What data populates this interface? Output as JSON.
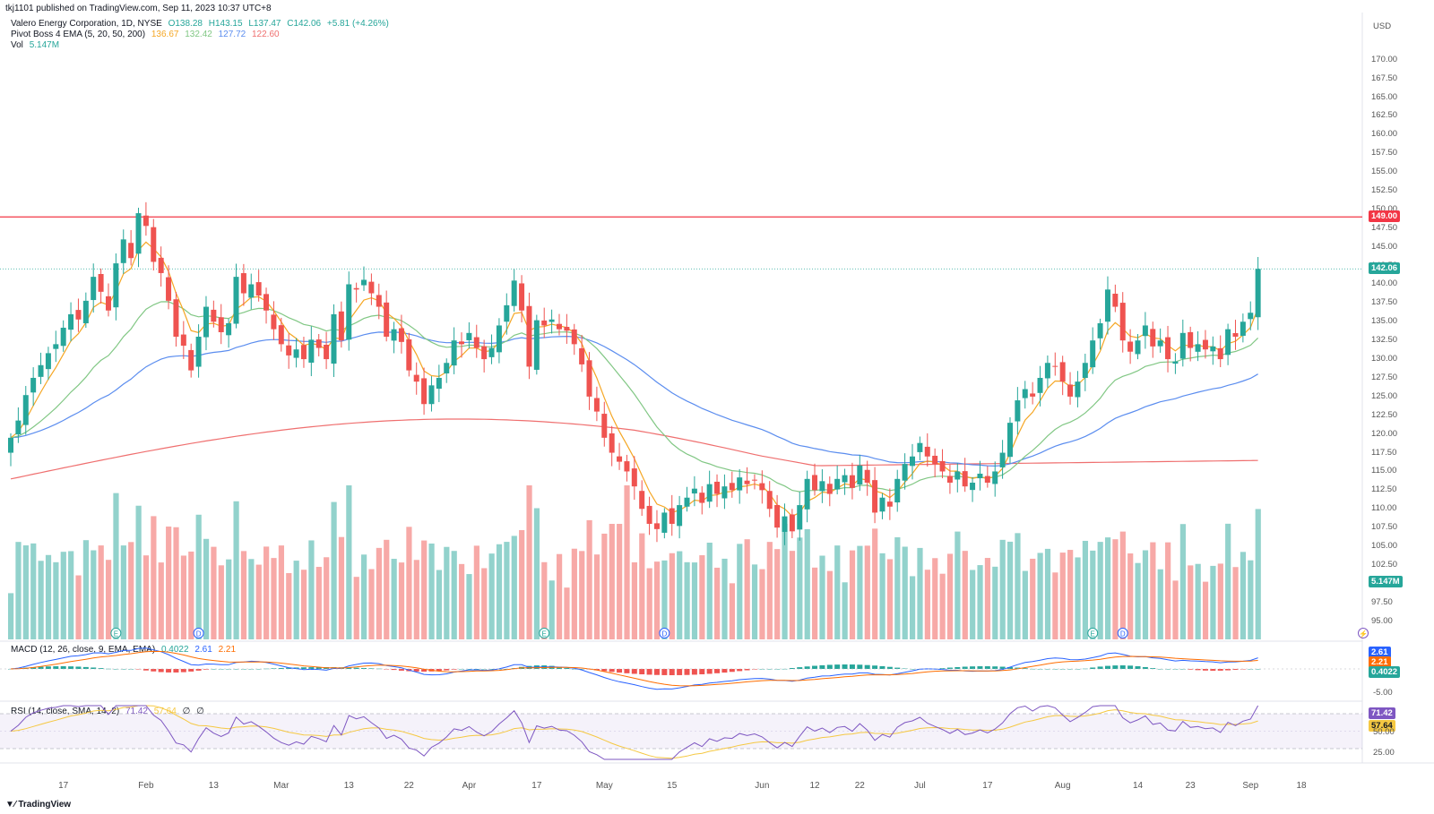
{
  "published": "tkj1101 published on TradingView.com, Sep 11, 2023 10:37 UTC+8",
  "footer": "TradingView",
  "currency": "USD",
  "legend": {
    "symbol": "Valero Energy Corporation, 1D, NYSE",
    "open": "O138.28",
    "high": "H143.15",
    "low": "L137.47",
    "close": "C142.06",
    "change": "+5.81 (+4.26%)",
    "ema_name": "Pivot Boss 4 EMA (5, 20, 50, 200)",
    "ema_vals": [
      "136.67",
      "132.42",
      "127.72",
      "122.60"
    ],
    "vol_name": "Vol",
    "vol_val": "5.147M",
    "macd_name": "MACD (12, 26, close, 9, EMA, EMA)",
    "macd_vals": [
      "0.4022",
      "2.61",
      "2.21"
    ],
    "rsi_name": "RSI (14, close, SMA, 14, 2)",
    "rsi_vals": [
      "71.42",
      "57.64",
      "∅",
      "∅"
    ]
  },
  "colors": {
    "up": "#26a69a",
    "down": "#ef5350",
    "ema5": "#f5a623",
    "ema20": "#81c784",
    "ema50": "#5b8def",
    "ema200": "#ef6f6f",
    "rsi": "#7e57c2",
    "rsi_ma": "#f5c842"
  },
  "price_axis": [
    "170.00",
    "167.50",
    "165.00",
    "162.50",
    "160.00",
    "157.50",
    "155.00",
    "152.50",
    "150.00",
    "147.50",
    "145.00",
    "142.50",
    "140.00",
    "137.50",
    "135.00",
    "132.50",
    "130.00",
    "127.50",
    "125.00",
    "122.50",
    "120.00",
    "117.50",
    "115.00",
    "112.50",
    "110.00",
    "107.50",
    "105.00",
    "102.50",
    "100.00",
    "97.50",
    "95.00"
  ],
  "price_tags": {
    "resistance": "149.00",
    "last": "142.06",
    "volume": "5.147M"
  },
  "macd_axis": [
    "2.61",
    "2.21",
    "0.4022",
    "-5.00"
  ],
  "rsi_axis": [
    "71.42",
    "57.64",
    "50.00",
    "25.00"
  ],
  "x_axis": [
    "17",
    "Feb",
    "13",
    "Mar",
    "13",
    "22",
    "Apr",
    "17",
    "May",
    "15",
    "Jun",
    "12",
    "22",
    "Jul",
    "17",
    "Aug",
    "14",
    "23",
    "Sep",
    "18"
  ],
  "event_markers": [
    "E",
    "D",
    "E",
    "D",
    "E",
    "D",
    "⚡"
  ],
  "chart_data": {
    "type": "candlestick",
    "series": [
      {
        "name": "Valero Energy Corporation",
        "close": [
          119.5,
          121.8,
          125.2,
          127.5,
          129.2,
          130.8,
          132.0,
          134.2,
          136.0,
          135.3,
          137.8,
          141.0,
          139.0,
          136.5,
          142.8,
          146.0,
          143.5,
          149.5,
          147.8,
          143.0,
          141.5,
          137.8,
          133.0,
          131.8,
          128.5,
          133.0,
          137.0,
          135.0,
          133.6,
          134.8,
          141.0,
          138.8,
          140.0,
          138.5,
          136.5,
          134.0,
          132.0,
          130.5,
          131.3,
          130.0,
          132.6,
          131.5,
          130.0,
          136.0,
          132.5,
          140.0,
          139.3,
          140.6,
          138.8,
          137.0,
          133.0,
          134.0,
          132.3,
          128.5,
          127.0,
          124.0,
          126.5,
          127.5,
          129.5,
          132.5,
          132.0,
          133.5,
          131.5,
          130.0,
          131.5,
          134.5,
          137.2,
          140.5,
          136.5,
          129.0,
          135.2,
          134.5,
          135.3,
          134.0,
          133.8,
          132.0,
          129.3,
          125.0,
          123.0,
          119.5,
          117.5,
          116.3,
          115.0,
          113.0,
          110.0,
          108.0,
          107.3,
          109.5,
          108.0,
          110.5,
          111.5,
          112.7,
          110.8,
          113.3,
          112.0,
          113.0,
          112.5,
          114.2,
          113.3,
          113.8,
          112.5,
          110.0,
          107.5,
          109.0,
          107.0,
          110.5,
          114.0,
          112.5,
          113.7,
          112.0,
          114.0,
          114.5,
          112.8,
          115.8,
          113.5,
          109.5,
          111.5,
          110.3,
          114.0,
          116.0,
          117.0,
          118.8,
          117.0,
          116.0,
          115.0,
          113.5,
          115.0,
          113.0,
          113.5,
          114.7,
          113.5,
          115.0,
          117.5,
          121.5,
          124.5,
          126.0,
          125.0,
          127.5,
          129.5,
          129.0,
          127.0,
          125.0,
          127.0,
          129.5,
          132.5,
          134.8,
          139.3,
          137.0,
          132.5,
          131.0,
          132.5,
          134.5,
          131.7,
          132.5,
          130.0,
          129.7,
          133.5,
          131.5,
          132.0,
          131.3,
          131.7,
          130.0,
          134.0,
          133.0,
          135.0,
          136.2,
          142.06
        ]
      }
    ],
    "ema": {
      "5": "136.67",
      "20": "132.42",
      "50": "127.72",
      "200": "122.60"
    },
    "resistance_line": 149.0,
    "volume_last": "5.147M",
    "ylim": [
      94,
      172
    ]
  }
}
